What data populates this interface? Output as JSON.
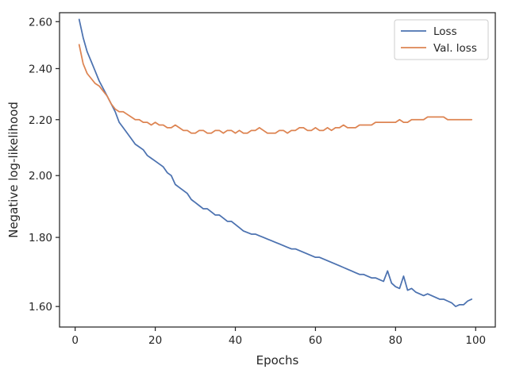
{
  "chart_data": {
    "type": "line",
    "xlabel": "Epochs",
    "ylabel": "Negative log-likelihood",
    "xlim": [
      -3.9,
      104.9
    ],
    "ylim": [
      1.545,
      2.64
    ],
    "yscale": "log",
    "xticks": [
      0,
      20,
      40,
      60,
      80,
      100
    ],
    "yticks": [
      1.6,
      1.8,
      2.0,
      2.2,
      2.4,
      2.6
    ],
    "ytick_labels": [
      "1.60",
      "1.80",
      "2.00",
      "2.20",
      "2.40",
      "2.60"
    ],
    "grid": false,
    "legend_position": "upper right",
    "x": [
      1,
      2,
      3,
      4,
      5,
      6,
      7,
      8,
      9,
      10,
      11,
      12,
      13,
      14,
      15,
      16,
      17,
      18,
      19,
      20,
      21,
      22,
      23,
      24,
      25,
      26,
      27,
      28,
      29,
      30,
      31,
      32,
      33,
      34,
      35,
      36,
      37,
      38,
      39,
      40,
      41,
      42,
      43,
      44,
      45,
      46,
      47,
      48,
      49,
      50,
      51,
      52,
      53,
      54,
      55,
      56,
      57,
      58,
      59,
      60,
      61,
      62,
      63,
      64,
      65,
      66,
      67,
      68,
      69,
      70,
      71,
      72,
      73,
      74,
      75,
      76,
      77,
      78,
      79,
      80,
      81,
      82,
      83,
      84,
      85,
      86,
      87,
      88,
      89,
      90,
      91,
      92,
      93,
      94,
      95,
      96,
      97,
      98,
      99
    ],
    "series": [
      {
        "name": "Loss",
        "color": "#4c72b0",
        "values": [
          2.61,
          2.53,
          2.47,
          2.43,
          2.39,
          2.35,
          2.32,
          2.29,
          2.26,
          2.23,
          2.19,
          2.17,
          2.15,
          2.13,
          2.11,
          2.1,
          2.09,
          2.07,
          2.06,
          2.05,
          2.04,
          2.03,
          2.01,
          2.0,
          1.97,
          1.96,
          1.95,
          1.94,
          1.92,
          1.91,
          1.9,
          1.89,
          1.89,
          1.88,
          1.87,
          1.87,
          1.86,
          1.85,
          1.85,
          1.84,
          1.83,
          1.82,
          1.815,
          1.81,
          1.81,
          1.805,
          1.8,
          1.795,
          1.79,
          1.785,
          1.78,
          1.775,
          1.77,
          1.765,
          1.765,
          1.76,
          1.755,
          1.75,
          1.745,
          1.74,
          1.74,
          1.735,
          1.73,
          1.725,
          1.72,
          1.715,
          1.71,
          1.705,
          1.7,
          1.695,
          1.69,
          1.69,
          1.685,
          1.68,
          1.68,
          1.675,
          1.67,
          1.7,
          1.665,
          1.655,
          1.65,
          1.685,
          1.645,
          1.65,
          1.64,
          1.635,
          1.63,
          1.635,
          1.63,
          1.625,
          1.62,
          1.62,
          1.615,
          1.61,
          1.6,
          1.605,
          1.605,
          1.615,
          1.62
        ]
      },
      {
        "name": "Val. loss",
        "color": "#dd8452",
        "values": [
          2.5,
          2.42,
          2.38,
          2.36,
          2.34,
          2.33,
          2.31,
          2.29,
          2.26,
          2.24,
          2.23,
          2.23,
          2.22,
          2.21,
          2.2,
          2.2,
          2.19,
          2.19,
          2.18,
          2.19,
          2.18,
          2.18,
          2.17,
          2.17,
          2.18,
          2.17,
          2.16,
          2.16,
          2.15,
          2.15,
          2.16,
          2.16,
          2.15,
          2.15,
          2.16,
          2.16,
          2.15,
          2.16,
          2.16,
          2.15,
          2.16,
          2.15,
          2.15,
          2.16,
          2.16,
          2.17,
          2.16,
          2.15,
          2.15,
          2.15,
          2.16,
          2.16,
          2.15,
          2.16,
          2.16,
          2.17,
          2.17,
          2.16,
          2.16,
          2.17,
          2.16,
          2.16,
          2.17,
          2.16,
          2.17,
          2.17,
          2.18,
          2.17,
          2.17,
          2.17,
          2.18,
          2.18,
          2.18,
          2.18,
          2.19,
          2.19,
          2.19,
          2.19,
          2.19,
          2.19,
          2.2,
          2.19,
          2.19,
          2.2,
          2.2,
          2.2,
          2.2,
          2.21,
          2.21,
          2.21,
          2.21,
          2.21,
          2.2,
          2.2,
          2.2,
          2.2,
          2.2,
          2.2,
          2.2
        ]
      }
    ]
  }
}
